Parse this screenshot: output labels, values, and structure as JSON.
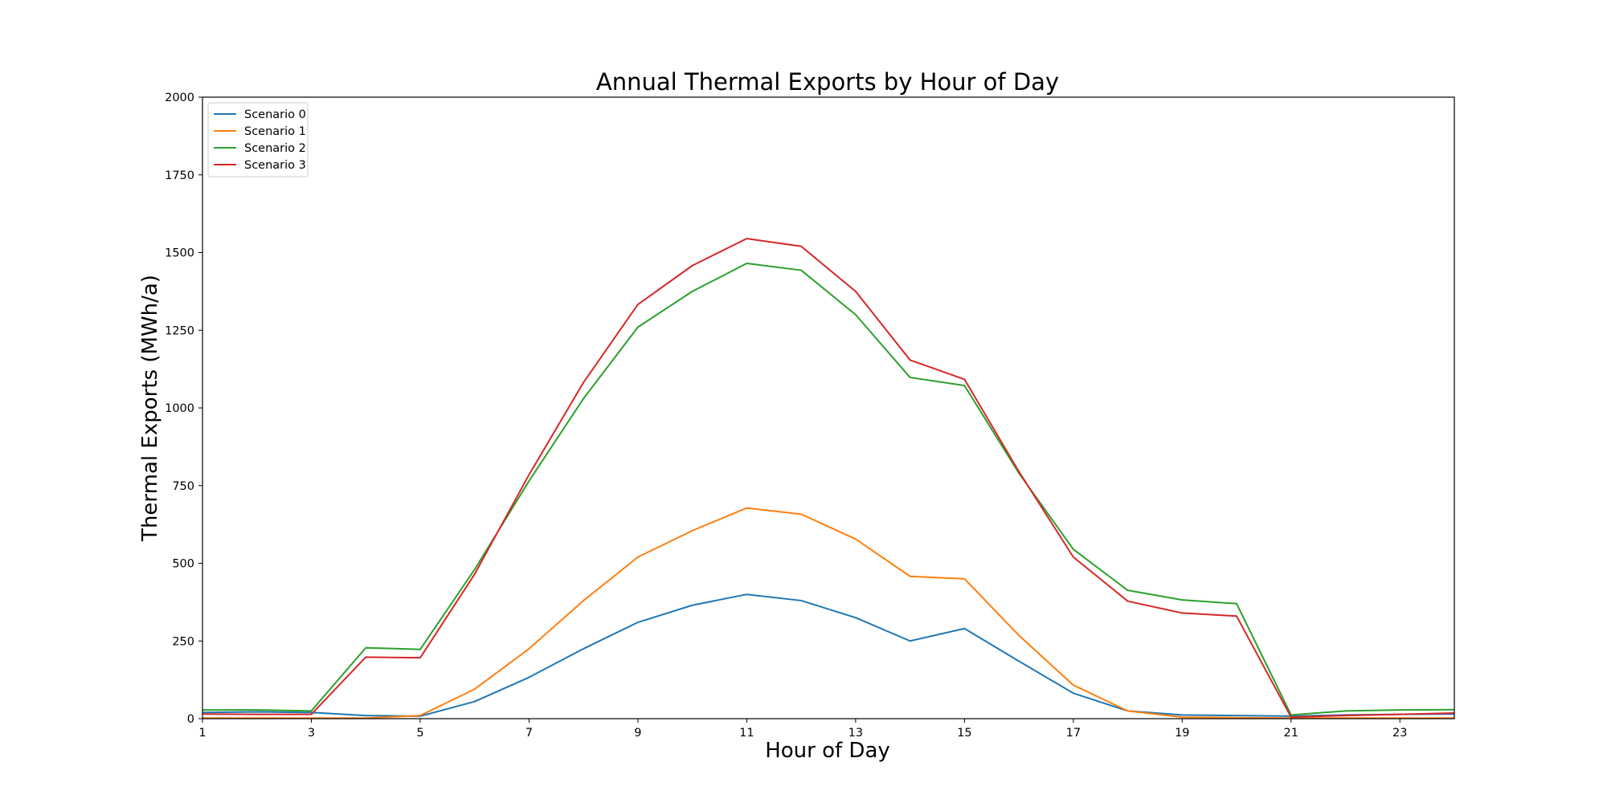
{
  "chart_data": {
    "type": "line",
    "title": "Annual Thermal Exports by Hour of Day",
    "xlabel": "Hour of Day",
    "ylabel": "Thermal Exports (MWh/a)",
    "xlim": [
      1,
      24
    ],
    "ylim": [
      0,
      2000
    ],
    "x_ticks": [
      1,
      3,
      5,
      7,
      9,
      11,
      13,
      15,
      17,
      19,
      21,
      23
    ],
    "y_ticks": [
      0,
      250,
      500,
      750,
      1000,
      1250,
      1500,
      1750,
      2000
    ],
    "grid": false,
    "legend_position": "top-left",
    "x": [
      1,
      2,
      3,
      4,
      5,
      6,
      7,
      8,
      9,
      10,
      11,
      12,
      13,
      14,
      15,
      16,
      17,
      18,
      19,
      20,
      21,
      22,
      23,
      24
    ],
    "series": [
      {
        "name": "Scenario 0",
        "color": "#1f77b4",
        "values": [
          20,
          22,
          20,
          10,
          8,
          55,
          133,
          225,
          310,
          365,
          400,
          380,
          325,
          250,
          290,
          185,
          82,
          25,
          12,
          10,
          8,
          12,
          14,
          15
        ]
      },
      {
        "name": "Scenario 1",
        "color": "#ff7f0e",
        "values": [
          2,
          2,
          2,
          2,
          10,
          95,
          225,
          380,
          520,
          605,
          678,
          658,
          578,
          458,
          450,
          268,
          108,
          25,
          5,
          3,
          2,
          2,
          2,
          2
        ]
      },
      {
        "name": "Scenario 2",
        "color": "#2ca02c",
        "values": [
          28,
          28,
          25,
          228,
          223,
          480,
          765,
          1030,
          1260,
          1375,
          1465,
          1443,
          1300,
          1098,
          1072,
          790,
          545,
          413,
          382,
          370,
          12,
          25,
          28,
          29
        ]
      },
      {
        "name": "Scenario 3",
        "color": "#d62728",
        "values": [
          15,
          14,
          14,
          198,
          196,
          465,
          785,
          1082,
          1333,
          1458,
          1545,
          1520,
          1375,
          1154,
          1092,
          795,
          520,
          378,
          340,
          330,
          5,
          10,
          14,
          18
        ]
      }
    ]
  }
}
